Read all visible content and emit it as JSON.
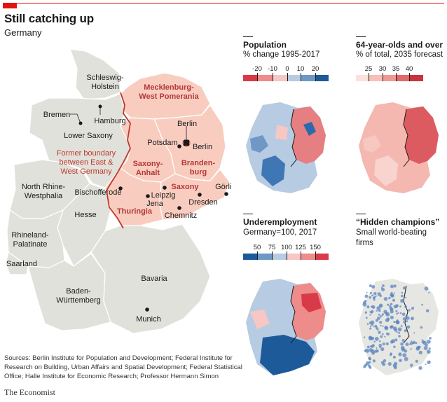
{
  "header": {
    "title": "Still catching up",
    "subtitle": "Germany"
  },
  "main_map": {
    "states": [
      "Schleswig-Holstein",
      "Mecklenburg-West Pomerania",
      "Lower Saxony",
      "North Rhine-Westphalia",
      "Hesse",
      "Rhineland-Palatinate",
      "Saarland",
      "Baden-Württemberg",
      "Bavaria",
      "Saxony-Anhalt",
      "Brandenburg",
      "Saxony",
      "Thuringia"
    ],
    "labels": {
      "schleswig_1": "Schleswig-",
      "schleswig_2": "Holstein",
      "mecklenburg_1": "Mecklenburg-",
      "mecklenburg_2": "West Pomerania",
      "lower_saxony": "Lower Saxony",
      "nrw_1": "North Rhine-",
      "nrw_2": "Westphalia",
      "hesse": "Hesse",
      "rhineland_1": "Rhineland-",
      "rhineland_2": "Palatinate",
      "saarland": "Saarland",
      "baden_1": "Baden-",
      "baden_2": "Württemberg",
      "bavaria": "Bavaria",
      "saxony_anhalt_1": "Saxony-",
      "saxony_anhalt_2": "Anhalt",
      "brandenburg_1": "Branden-",
      "brandenburg_2": "burg",
      "saxony": "Saxony",
      "thuringia": "Thuringia",
      "boundary_1": "Former boundary",
      "boundary_2": "between East &",
      "boundary_3": "West Germany"
    },
    "cities": {
      "bremen": "Bremen",
      "hamburg": "Hamburg",
      "berlin_state": "Berlin",
      "berlin": "Berlin",
      "potsdam": "Potsdam",
      "bischofferode": "Bischofferode",
      "jena": "Jena",
      "leipzig": "Leipzig",
      "dresden": "Dresden",
      "chemnitz": "Chemnitz",
      "gorlitz": "Görlitz",
      "munich": "Munich"
    },
    "colors": {
      "west_fill": "#e1e1dc",
      "east_fill": "#f8cdbf",
      "border": "#c0392b",
      "east_label": "#b5373a"
    }
  },
  "panels": {
    "population": {
      "title": "Population",
      "subtitle": "% change 1995-2017",
      "ticks": [
        "-20",
        "-10",
        "0",
        "10",
        "20"
      ]
    },
    "elderly": {
      "title": "64-year-olds and over",
      "subtitle": "% of total, 2035 forecast",
      "ticks": [
        "25",
        "30",
        "35",
        "40"
      ]
    },
    "underemployment": {
      "title": "Underemployment",
      "subtitle": "Germany=100, 2017",
      "ticks": [
        "50",
        "75",
        "100",
        "125",
        "150"
      ]
    },
    "champions": {
      "title": "“Hidden champions”",
      "subtitle_1": "Small world-beating",
      "subtitle_2": "firms"
    }
  },
  "footer": {
    "sources": "Sources: Berlin Institute for Population and Development; Federal Institute for Research on Building, Urban Affairs and Spatial Development; Federal Statistical Office; Halle Institute for Economic Research; Professor Hermann Simon",
    "credit": "The Economist"
  }
}
